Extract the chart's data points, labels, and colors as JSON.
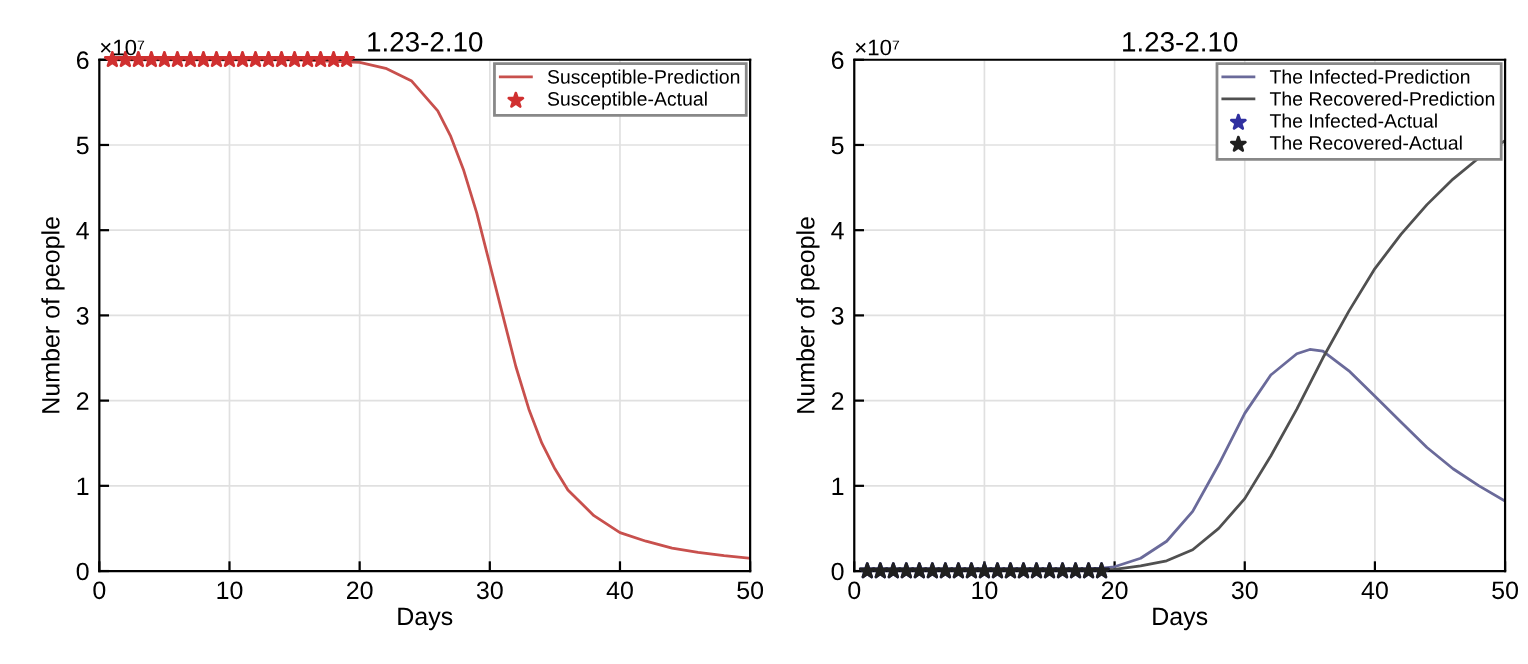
{
  "chart_data": [
    {
      "type": "line",
      "title": "1.23-2.10",
      "xlabel": "Days",
      "ylabel": "Number of people",
      "annotations": [
        "×10⁷"
      ],
      "xlim": [
        0,
        50
      ],
      "ylim": [
        0,
        6
      ],
      "xticks": [
        0,
        10,
        20,
        30,
        40,
        50
      ],
      "yticks": [
        0,
        1,
        2,
        3,
        4,
        5,
        6
      ],
      "grid": true,
      "legend": "top right",
      "series": [
        {
          "name": "Susceptible-Prediction",
          "type": "line",
          "color": "#c8504d",
          "line_style": "solid",
          "x": [
            1,
            5,
            10,
            15,
            20,
            22,
            24,
            26,
            27,
            28,
            29,
            30,
            31,
            32,
            33,
            34,
            35,
            36,
            38,
            40,
            42,
            44,
            46,
            48,
            50
          ],
          "values": [
            6,
            6,
            6,
            6,
            5.97,
            5.9,
            5.75,
            5.4,
            5.1,
            4.7,
            4.2,
            3.6,
            3.0,
            2.4,
            1.9,
            1.5,
            1.2,
            0.95,
            0.65,
            0.45,
            0.35,
            0.27,
            0.22,
            0.18,
            0.15
          ]
        },
        {
          "name": "Susceptible-Actual",
          "type": "scatter",
          "marker": "star",
          "color": "#d03030",
          "x": [
            1,
            2,
            3,
            4,
            5,
            6,
            7,
            8,
            9,
            10,
            11,
            12,
            13,
            14,
            15,
            16,
            17,
            18,
            19
          ],
          "values": [
            6,
            6,
            6,
            6,
            6,
            6,
            6,
            6,
            6,
            6,
            6,
            6,
            6,
            6,
            6,
            6,
            6,
            6,
            6
          ]
        }
      ]
    },
    {
      "type": "line",
      "title": "1.23-2.10",
      "xlabel": "Days",
      "ylabel": "Number of people",
      "annotations": [
        "×10⁷"
      ],
      "xlim": [
        0,
        50
      ],
      "ylim": [
        0,
        6
      ],
      "xticks": [
        0,
        10,
        20,
        30,
        40,
        50
      ],
      "yticks": [
        0,
        1,
        2,
        3,
        4,
        5,
        6
      ],
      "grid": true,
      "legend": "top right",
      "series": [
        {
          "name": "The Infected-Prediction",
          "type": "line",
          "color": "#6a6a9a",
          "line_style": "solid",
          "x": [
            1,
            10,
            18,
            20,
            22,
            24,
            26,
            28,
            30,
            32,
            34,
            35,
            36,
            38,
            40,
            42,
            44,
            46,
            48,
            50
          ],
          "values": [
            0.01,
            0.01,
            0.02,
            0.05,
            0.15,
            0.35,
            0.7,
            1.25,
            1.85,
            2.3,
            2.55,
            2.6,
            2.58,
            2.35,
            2.05,
            1.75,
            1.45,
            1.2,
            1.0,
            0.82
          ]
        },
        {
          "name": "The Recovered-Prediction",
          "type": "line",
          "color": "#505050",
          "line_style": "solid",
          "x": [
            1,
            10,
            18,
            20,
            22,
            24,
            26,
            28,
            30,
            32,
            34,
            36,
            38,
            40,
            42,
            44,
            46,
            48,
            50
          ],
          "values": [
            0,
            0,
            0.01,
            0.02,
            0.06,
            0.12,
            0.25,
            0.5,
            0.85,
            1.35,
            1.9,
            2.5,
            3.05,
            3.55,
            3.95,
            4.3,
            4.6,
            4.85,
            5.05
          ]
        },
        {
          "name": "The Infected-Actual",
          "type": "scatter",
          "marker": "star",
          "color": "#3030a0",
          "x": [
            1,
            2,
            3,
            4,
            5,
            6,
            7,
            8,
            9,
            10,
            11,
            12,
            13,
            14,
            15,
            16,
            17,
            18,
            19
          ],
          "values": [
            0,
            0,
            0,
            0,
            0,
            0,
            0,
            0,
            0,
            0,
            0,
            0,
            0,
            0,
            0,
            0,
            0,
            0,
            0
          ]
        },
        {
          "name": "The Recovered-Actual",
          "type": "scatter",
          "marker": "star",
          "color": "#202020",
          "x": [
            1,
            2,
            3,
            4,
            5,
            6,
            7,
            8,
            9,
            10,
            11,
            12,
            13,
            14,
            15,
            16,
            17,
            18,
            19
          ],
          "values": [
            0,
            0,
            0,
            0,
            0,
            0,
            0,
            0,
            0,
            0,
            0,
            0,
            0,
            0,
            0,
            0,
            0,
            0,
            0
          ]
        }
      ]
    }
  ]
}
